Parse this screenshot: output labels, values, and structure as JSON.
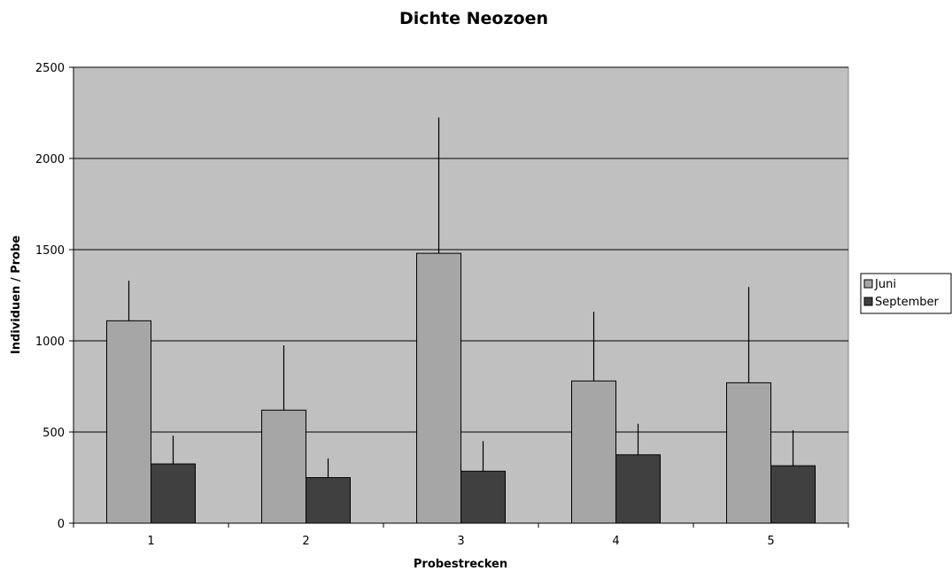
{
  "chart_data": {
    "type": "bar",
    "title": "Dichte Neozoen",
    "xlabel": "Probestrecken",
    "ylabel": "Individuen / Probe",
    "categories": [
      "1",
      "2",
      "3",
      "4",
      "5"
    ],
    "ylim": [
      0,
      2500
    ],
    "yticks": [
      0,
      500,
      1000,
      1500,
      2000,
      2500
    ],
    "grid": true,
    "legend_position": "right",
    "series": [
      {
        "name": "Juni",
        "color": "#a6a6a6",
        "values": [
          1110,
          620,
          1480,
          780,
          770
        ],
        "error_upper": [
          220,
          355,
          745,
          380,
          525
        ]
      },
      {
        "name": "September",
        "color": "#404040",
        "values": [
          325,
          250,
          285,
          375,
          315
        ],
        "error_upper": [
          155,
          105,
          165,
          170,
          195
        ]
      }
    ]
  }
}
